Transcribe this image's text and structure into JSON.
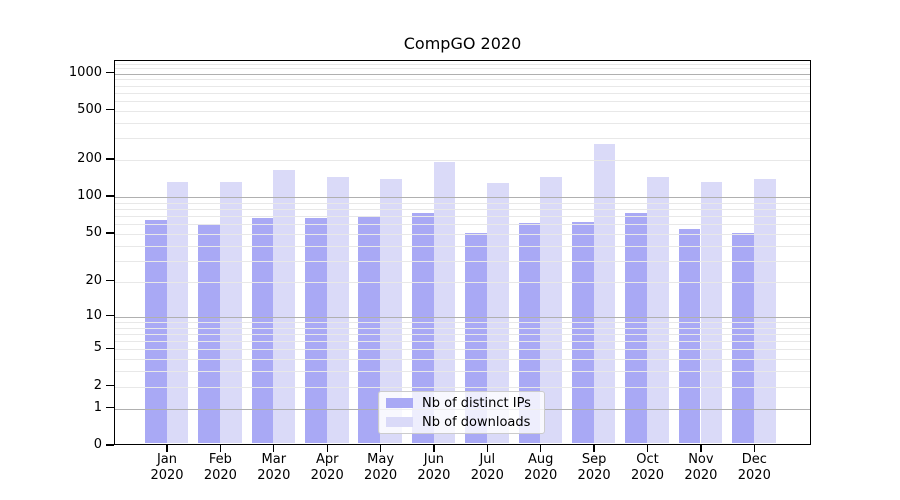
{
  "chart_data": {
    "type": "bar",
    "title": "CompGO 2020",
    "categories": [
      "Jan 2020",
      "Feb 2020",
      "Mar 2020",
      "Apr 2020",
      "May 2020",
      "Jun 2020",
      "Jul 2020",
      "Aug 2020",
      "Sep 2020",
      "Oct 2020",
      "Nov 2020",
      "Dec 2020"
    ],
    "series": [
      {
        "name": "Nb of distinct IPs",
        "color": "#a9a9f5",
        "values": [
          65,
          60,
          68,
          68,
          70,
          75,
          51,
          61,
          63,
          74,
          55,
          51
        ]
      },
      {
        "name": "Nb of downloads",
        "color": "#dadaf8",
        "values": [
          134,
          134,
          166,
          145,
          141,
          193,
          130,
          147,
          270,
          147,
          134,
          141
        ]
      }
    ],
    "yscale": "log1p",
    "ylim": [
      0,
      1260
    ],
    "yticks": [
      0,
      1,
      2,
      5,
      10,
      20,
      50,
      100,
      200,
      500,
      1000
    ],
    "grid_major_values": [
      1,
      10,
      100,
      1000
    ],
    "grid_minor_values": [
      2,
      3,
      4,
      5,
      6,
      7,
      8,
      9,
      20,
      30,
      40,
      50,
      60,
      70,
      80,
      90,
      200,
      300,
      400,
      500,
      600,
      700,
      800,
      900,
      1100,
      1200
    ],
    "legend_position": "lower center",
    "grid": "on",
    "xlabel": "",
    "ylabel": ""
  },
  "legend": {
    "items": [
      "Nb of distinct IPs",
      "Nb of downloads"
    ]
  },
  "colors": {
    "grid_major": "#b0b0b0",
    "grid_minor": "#e8e8e8",
    "axis": "#000000",
    "background": "#ffffff"
  }
}
